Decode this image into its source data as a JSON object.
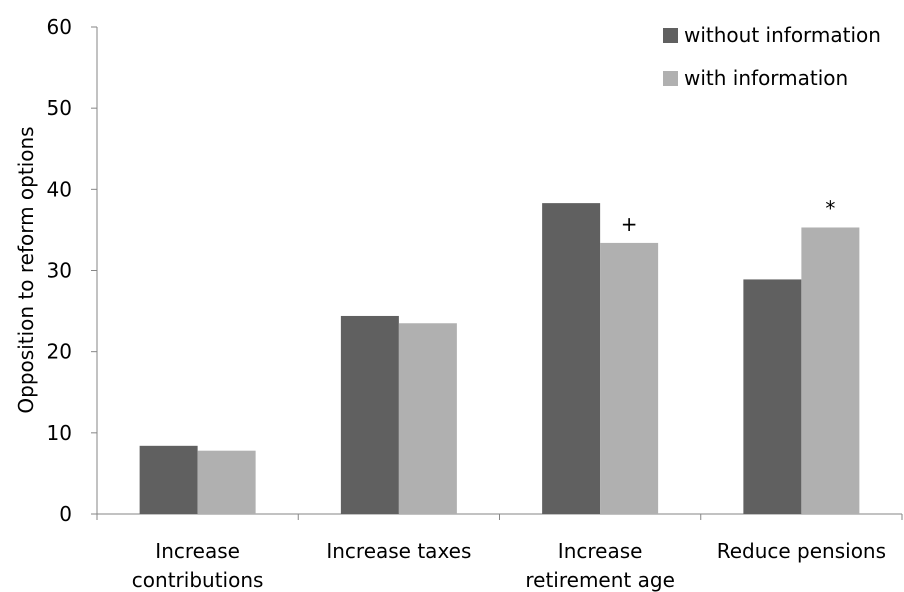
{
  "chart_data": {
    "type": "bar",
    "title": "",
    "xlabel": "",
    "ylabel": "Opposition to reform options",
    "ylim": [
      0,
      60
    ],
    "yticks": [
      0,
      10,
      20,
      30,
      40,
      50,
      60
    ],
    "grid": false,
    "legend_position": "top-right",
    "categories": [
      [
        "Increase",
        "contributions"
      ],
      [
        "Increase taxes"
      ],
      [
        "Increase",
        "retirement age"
      ],
      [
        "Reduce pensions"
      ]
    ],
    "series": [
      {
        "name": "without information",
        "color": "#606060",
        "values": [
          8.4,
          24.4,
          38.3,
          28.9
        ]
      },
      {
        "name": "with information",
        "color": "#b0b0b0",
        "values": [
          7.8,
          23.5,
          33.4,
          35.3
        ]
      }
    ],
    "annotations": [
      {
        "category_index": 2,
        "series_index": 1,
        "text": "+"
      },
      {
        "category_index": 3,
        "series_index": 1,
        "text": "*"
      }
    ]
  }
}
